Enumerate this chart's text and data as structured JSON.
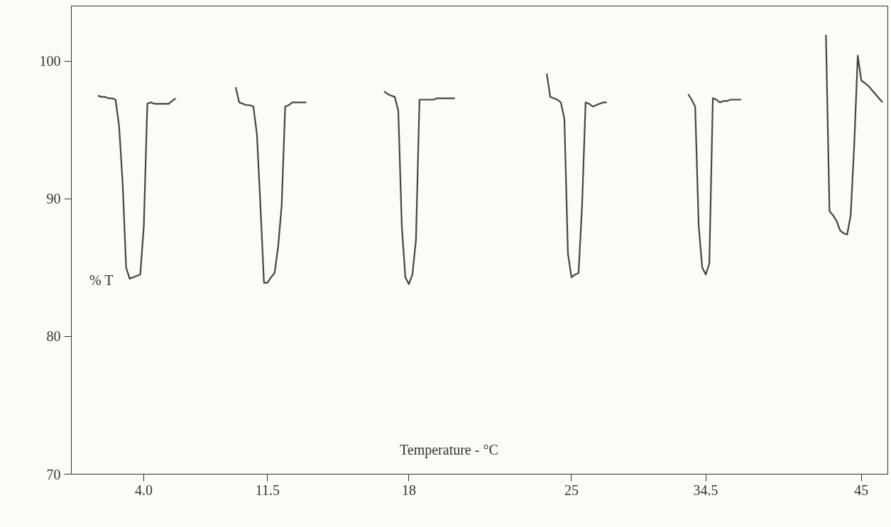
{
  "chart_data": {
    "type": "line",
    "xlabel": "Temperature - °C",
    "ylabel": "% T",
    "categories": [
      null,
      null,
      null,
      null,
      null,
      null,
      null,
      null,
      null,
      null,
      null,
      null,
      null,
      null,
      null,
      null,
      null,
      null,
      null,
      null,
      "4.0",
      null,
      null,
      null,
      null,
      null,
      null,
      null,
      null,
      null,
      null,
      null,
      null,
      null,
      null,
      null,
      null,
      null,
      null,
      null,
      null,
      null,
      null,
      null,
      null,
      null,
      null,
      null,
      null,
      null,
      null,
      null,
      null,
      null,
      null,
      "11.5",
      null,
      null,
      null,
      null,
      null,
      null,
      null,
      null,
      null,
      null,
      null,
      null,
      null,
      null,
      null,
      null,
      null,
      null,
      null,
      null,
      null,
      null,
      null,
      null,
      null,
      null,
      null,
      null,
      null,
      null,
      null,
      null,
      null,
      null,
      null,
      null,
      null,
      null,
      null,
      "18",
      null,
      null,
      null,
      null,
      null,
      null,
      null,
      null,
      null,
      null,
      null,
      null,
      null,
      null,
      null,
      null,
      null,
      null,
      null,
      null,
      null,
      null,
      null,
      null,
      null,
      null,
      null,
      null,
      null,
      null,
      null,
      null,
      null,
      null,
      null,
      null,
      null,
      null,
      null,
      null,
      null,
      null,
      null,
      null,
      null,
      "25",
      null,
      null,
      null,
      null,
      null,
      null,
      null,
      null,
      null,
      null,
      null,
      null,
      null,
      null,
      null,
      null,
      null,
      null,
      null,
      null,
      null,
      null,
      null,
      null,
      null,
      null,
      null,
      null,
      null,
      null,
      null,
      null,
      null,
      null,
      null,
      null,
      null,
      "34.5",
      null,
      null,
      null,
      null,
      null,
      null,
      null,
      null,
      null,
      null,
      null,
      null,
      null,
      null,
      null,
      null,
      null,
      null,
      null,
      null,
      null,
      null,
      null,
      null,
      null,
      null,
      null,
      null,
      null,
      null,
      null,
      null,
      null,
      null,
      null,
      null,
      null,
      null,
      null,
      null,
      null,
      null,
      null,
      "45",
      null,
      null,
      null,
      null,
      null,
      null,
      null
    ],
    "ylim": [
      70,
      104
    ],
    "yticks": [
      70,
      80,
      90,
      100
    ],
    "grid": false,
    "marker": "none",
    "line_style": "solid",
    "series": [
      {
        "color": "#444444",
        "values": [
          null,
          null,
          null,
          null,
          null,
          null,
          null,
          97.5,
          97.4,
          97.4,
          97.3,
          97.3,
          97.2,
          95.3,
          91.2,
          85.0,
          84.2,
          84.3,
          84.4,
          84.5,
          88.0,
          96.9,
          97.0,
          96.9,
          96.9,
          96.9,
          96.9,
          96.9,
          97.1,
          97.3,
          null,
          null,
          null,
          null,
          null,
          null,
          null,
          null,
          null,
          null,
          null,
          null,
          null,
          null,
          null,
          null,
          98.1,
          97.0,
          96.9,
          96.8,
          96.8,
          96.7,
          94.7,
          89.5,
          83.9,
          83.9,
          84.3,
          84.6,
          86.5,
          89.5,
          96.7,
          96.8,
          97.0,
          97.0,
          97.0,
          97.0,
          97.0,
          null,
          null,
          null,
          null,
          null,
          null,
          null,
          null,
          null,
          null,
          null,
          null,
          null,
          null,
          null,
          null,
          null,
          null,
          null,
          null,
          null,
          97.8,
          97.6,
          97.5,
          97.4,
          96.4,
          88.0,
          84.3,
          83.8,
          84.5,
          87.0,
          97.2,
          97.2,
          97.2,
          97.2,
          97.2,
          97.3,
          97.3,
          97.3,
          97.3,
          97.3,
          97.3,
          null,
          null,
          null,
          null,
          null,
          null,
          null,
          null,
          null,
          null,
          null,
          null,
          null,
          null,
          null,
          null,
          null,
          null,
          null,
          null,
          null,
          null,
          null,
          null,
          null,
          99.1,
          97.4,
          97.3,
          97.2,
          97.0,
          95.8,
          86.0,
          84.3,
          84.5,
          84.6,
          89.5,
          97.0,
          96.9,
          96.7,
          96.8,
          96.9,
          97.0,
          97.0,
          null,
          null,
          null,
          null,
          null,
          null,
          null,
          null,
          null,
          null,
          null,
          null,
          null,
          null,
          null,
          null,
          null,
          null,
          null,
          null,
          null,
          null,
          97.6,
          97.2,
          96.7,
          88.0,
          85.0,
          84.5,
          85.3,
          97.3,
          97.2,
          97.0,
          97.1,
          97.1,
          97.2,
          97.2,
          97.2,
          97.2,
          null,
          null,
          null,
          null,
          null,
          null,
          null,
          null,
          null,
          null,
          null,
          null,
          null,
          null,
          null,
          null,
          null,
          null,
          null,
          null,
          null,
          null,
          null,
          101.9,
          89.1,
          88.8,
          88.4,
          87.7,
          87.5,
          87.4,
          88.8,
          93.9,
          100.4,
          98.6,
          98.4,
          98.2,
          97.9,
          97.6,
          97.3,
          97.0,
          null
        ]
      }
    ]
  }
}
